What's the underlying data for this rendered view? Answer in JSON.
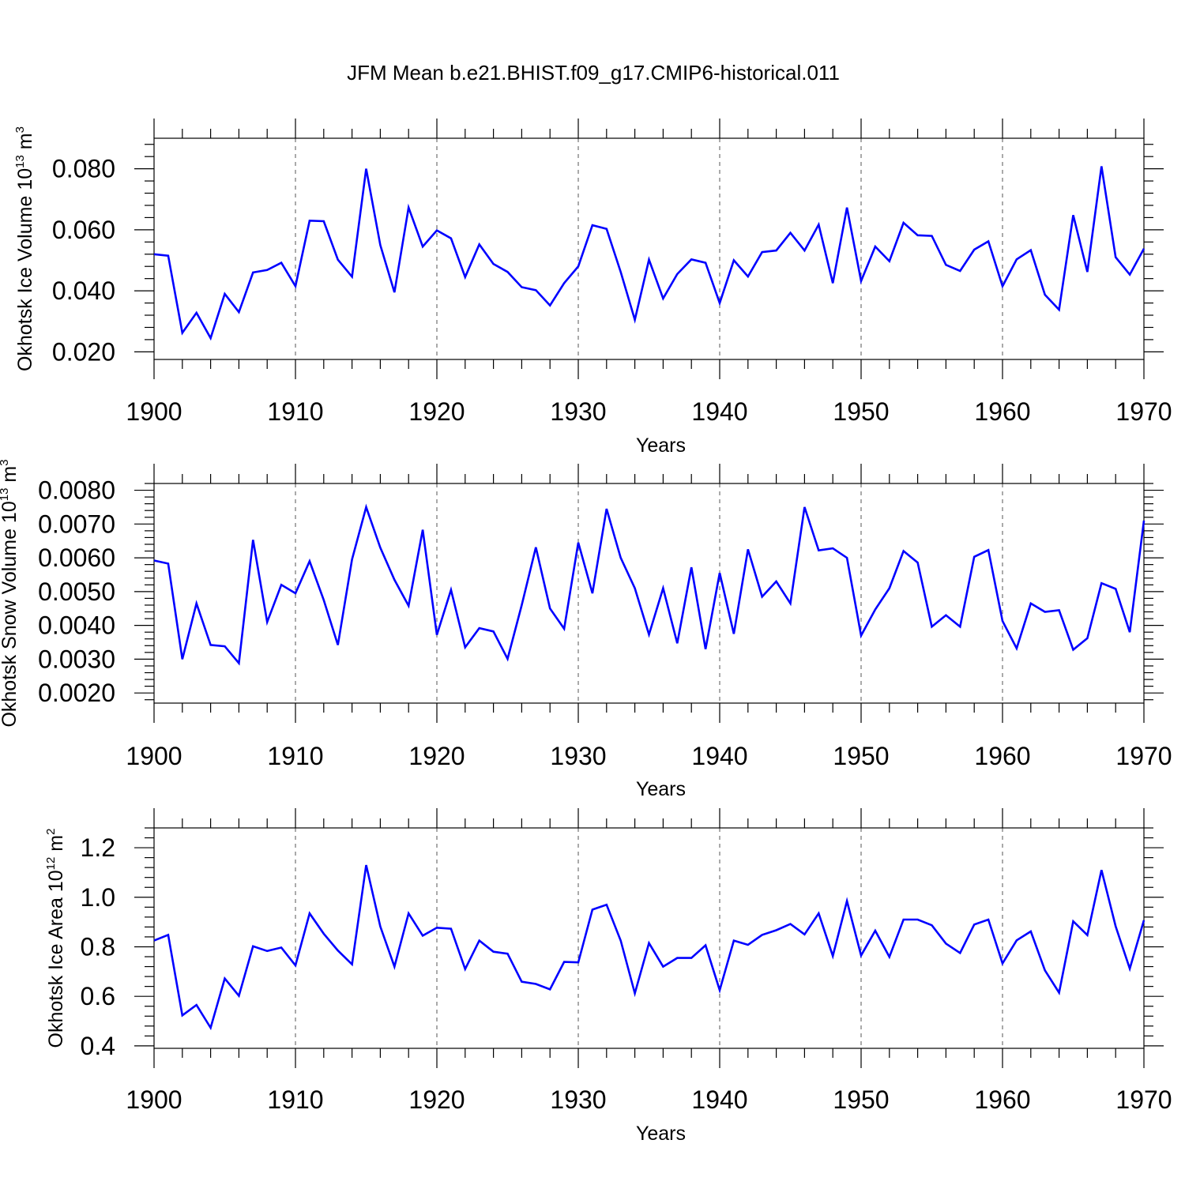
{
  "title": "JFM Mean b.e21.BHIST.f09_g17.CMIP6-historical.011",
  "colors": {
    "line": "#0000ff",
    "axis": "#000000",
    "grid": "#555555"
  },
  "chart_data": [
    {
      "type": "line",
      "series_name": "Okhotsk Ice Volume",
      "ylabel_main": "Okhotsk Ice Volume 10",
      "ylabel_exp": "13",
      "ylabel_unit": " m",
      "ylabel_unit_exp": "3",
      "xlabel": "Years",
      "xlim": [
        1900,
        1970
      ],
      "ylim": [
        0.0175,
        0.09
      ],
      "xticks": [
        1900,
        1910,
        1920,
        1930,
        1940,
        1950,
        1960,
        1970
      ],
      "yticks": [
        0.02,
        0.04,
        0.06,
        0.08
      ],
      "ytick_labels": [
        "0.020",
        "0.040",
        "0.060",
        "0.080"
      ],
      "x": [
        1900,
        1901,
        1902,
        1903,
        1904,
        1905,
        1906,
        1907,
        1908,
        1909,
        1910,
        1911,
        1912,
        1913,
        1914,
        1915,
        1916,
        1917,
        1918,
        1919,
        1920,
        1921,
        1922,
        1923,
        1924,
        1925,
        1926,
        1927,
        1928,
        1929,
        1930,
        1931,
        1932,
        1933,
        1934,
        1935,
        1936,
        1937,
        1938,
        1939,
        1940,
        1941,
        1942,
        1943,
        1944,
        1945,
        1946,
        1947,
        1948,
        1949,
        1950,
        1951,
        1952,
        1953,
        1954,
        1955,
        1956,
        1957,
        1958,
        1959,
        1960,
        1961,
        1962,
        1963,
        1964,
        1965,
        1966,
        1967,
        1968,
        1969,
        1970
      ],
      "y": [
        0.052,
        0.0515,
        0.0262,
        0.0328,
        0.0245,
        0.039,
        0.033,
        0.046,
        0.0468,
        0.0492,
        0.0415,
        0.063,
        0.0628,
        0.0502,
        0.0446,
        0.08,
        0.055,
        0.0395,
        0.0673,
        0.0545,
        0.0598,
        0.0572,
        0.0445,
        0.0552,
        0.0488,
        0.0462,
        0.0412,
        0.0402,
        0.0352,
        0.0425,
        0.048,
        0.0615,
        0.0603,
        0.0462,
        0.0305,
        0.0502,
        0.0375,
        0.0455,
        0.0503,
        0.0492,
        0.036,
        0.05,
        0.0447,
        0.0527,
        0.0532,
        0.059,
        0.0532,
        0.0617,
        0.0425,
        0.0673,
        0.0432,
        0.0545,
        0.0497,
        0.0623,
        0.0582,
        0.058,
        0.0485,
        0.0465,
        0.0535,
        0.0562,
        0.0415,
        0.0503,
        0.0533,
        0.0387,
        0.0338,
        0.0648,
        0.0462,
        0.0808,
        0.051,
        0.0453,
        0.0538
      ]
    },
    {
      "type": "line",
      "series_name": "Okhotsk Snow Volume",
      "ylabel_main": "Okhotsk Snow Volume 10",
      "ylabel_exp": "13",
      "ylabel_unit": " m",
      "ylabel_unit_exp": "3",
      "xlabel": "Years",
      "xlim": [
        1900,
        1970
      ],
      "ylim": [
        0.0017,
        0.0082
      ],
      "xticks": [
        1900,
        1910,
        1920,
        1930,
        1940,
        1950,
        1960,
        1970
      ],
      "yticks": [
        0.002,
        0.003,
        0.004,
        0.005,
        0.006,
        0.007,
        0.008
      ],
      "ytick_labels": [
        "0.0020",
        "0.0030",
        "0.0040",
        "0.0050",
        "0.0060",
        "0.0070",
        "0.0080"
      ],
      "x": [
        1900,
        1901,
        1902,
        1903,
        1904,
        1905,
        1906,
        1907,
        1908,
        1909,
        1910,
        1911,
        1912,
        1913,
        1914,
        1915,
        1916,
        1917,
        1918,
        1919,
        1920,
        1921,
        1922,
        1923,
        1924,
        1925,
        1926,
        1927,
        1928,
        1929,
        1930,
        1931,
        1932,
        1933,
        1934,
        1935,
        1936,
        1937,
        1938,
        1939,
        1940,
        1941,
        1942,
        1943,
        1944,
        1945,
        1946,
        1947,
        1948,
        1949,
        1950,
        1951,
        1952,
        1953,
        1954,
        1955,
        1956,
        1957,
        1958,
        1959,
        1960,
        1961,
        1962,
        1963,
        1964,
        1965,
        1966,
        1967,
        1968,
        1969,
        1970
      ],
      "y": [
        0.00592,
        0.00583,
        0.003,
        0.00465,
        0.00342,
        0.00338,
        0.00288,
        0.00653,
        0.0041,
        0.0052,
        0.00495,
        0.0059,
        0.00475,
        0.00342,
        0.00595,
        0.0075,
        0.0063,
        0.00535,
        0.00458,
        0.00683,
        0.00372,
        0.00505,
        0.00335,
        0.00392,
        0.00382,
        0.00301,
        0.0046,
        0.00631,
        0.0045,
        0.0039,
        0.00645,
        0.00495,
        0.00745,
        0.006,
        0.0051,
        0.00373,
        0.0051,
        0.00347,
        0.00572,
        0.0033,
        0.00555,
        0.00375,
        0.00625,
        0.00485,
        0.0053,
        0.00465,
        0.0075,
        0.00622,
        0.00628,
        0.006,
        0.0037,
        0.00447,
        0.0051,
        0.0062,
        0.00586,
        0.00396,
        0.0043,
        0.00396,
        0.00603,
        0.00623,
        0.00413,
        0.00332,
        0.00465,
        0.0044,
        0.00445,
        0.00328,
        0.00362,
        0.00525,
        0.00508,
        0.0038,
        0.0071
      ]
    },
    {
      "type": "line",
      "series_name": "Okhotsk Ice Area",
      "ylabel_main": "Okhotsk Ice Area 10",
      "ylabel_exp": "12",
      "ylabel_unit": " m",
      "ylabel_unit_exp": "2",
      "xlabel": "Years",
      "xlim": [
        1900,
        1970
      ],
      "ylim": [
        0.39,
        1.28
      ],
      "xticks": [
        1900,
        1910,
        1920,
        1930,
        1940,
        1950,
        1960,
        1970
      ],
      "yticks": [
        0.4,
        0.6,
        0.8,
        1.0,
        1.2
      ],
      "ytick_labels": [
        "0.4",
        "0.6",
        "0.8",
        "1.0",
        "1.2"
      ],
      "x": [
        1900,
        1901,
        1902,
        1903,
        1904,
        1905,
        1906,
        1907,
        1908,
        1909,
        1910,
        1911,
        1912,
        1913,
        1914,
        1915,
        1916,
        1917,
        1918,
        1919,
        1920,
        1921,
        1922,
        1923,
        1924,
        1925,
        1926,
        1927,
        1928,
        1929,
        1930,
        1931,
        1932,
        1933,
        1934,
        1935,
        1936,
        1937,
        1938,
        1939,
        1940,
        1941,
        1942,
        1943,
        1944,
        1945,
        1946,
        1947,
        1948,
        1949,
        1950,
        1951,
        1952,
        1953,
        1954,
        1955,
        1956,
        1957,
        1958,
        1959,
        1960,
        1961,
        1962,
        1963,
        1964,
        1965,
        1966,
        1967,
        1968,
        1969,
        1970
      ],
      "y": [
        0.825,
        0.848,
        0.523,
        0.565,
        0.473,
        0.672,
        0.602,
        0.802,
        0.783,
        0.797,
        0.725,
        0.935,
        0.853,
        0.785,
        0.729,
        1.13,
        0.882,
        0.72,
        0.935,
        0.845,
        0.877,
        0.873,
        0.71,
        0.825,
        0.78,
        0.772,
        0.659,
        0.65,
        0.628,
        0.739,
        0.737,
        0.95,
        0.97,
        0.825,
        0.612,
        0.815,
        0.72,
        0.755,
        0.755,
        0.806,
        0.625,
        0.825,
        0.808,
        0.848,
        0.867,
        0.892,
        0.85,
        0.935,
        0.763,
        0.985,
        0.765,
        0.865,
        0.759,
        0.91,
        0.91,
        0.887,
        0.813,
        0.775,
        0.89,
        0.91,
        0.733,
        0.826,
        0.862,
        0.705,
        0.615,
        0.903,
        0.847,
        1.11,
        0.883,
        0.712,
        0.907
      ]
    }
  ]
}
